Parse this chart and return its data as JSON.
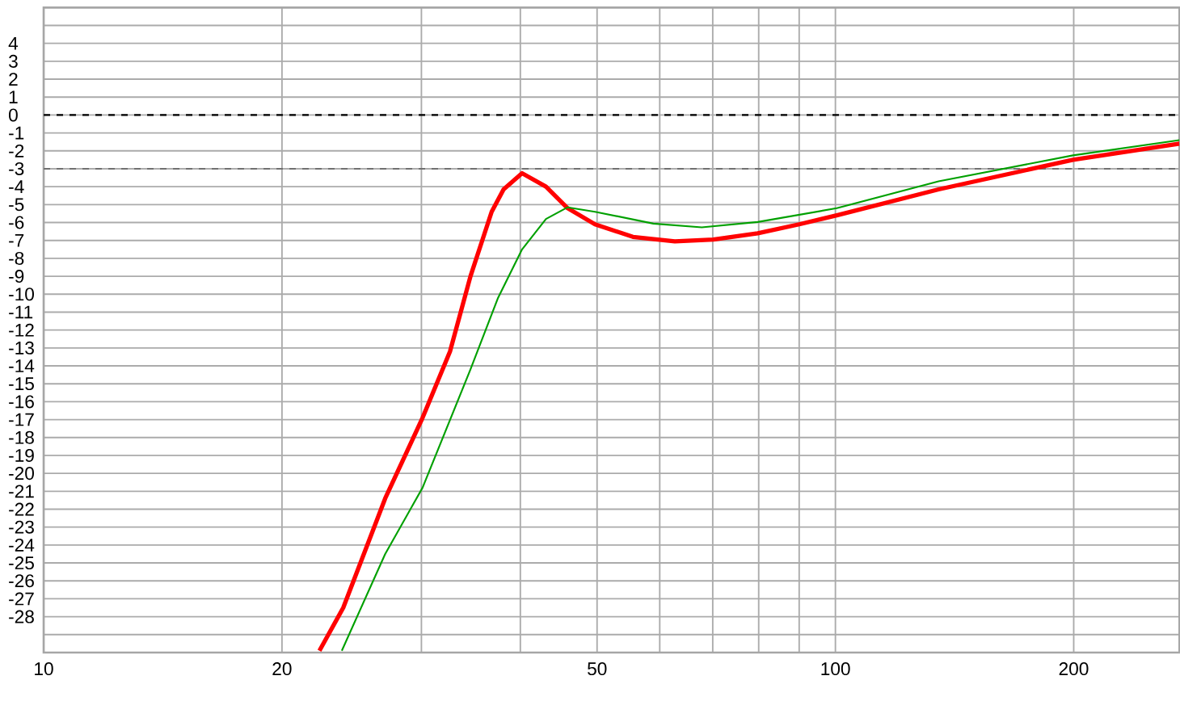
{
  "chart_data": {
    "type": "line",
    "log": "x",
    "xlim": [
      10,
      272
    ],
    "ylim": [
      -30,
      6
    ],
    "xticks": [
      10,
      20,
      {
        "value": 30,
        "label": null
      },
      {
        "value": 40,
        "label": null
      },
      50,
      {
        "value": 60,
        "label": null
      },
      {
        "value": 70,
        "label": null
      },
      {
        "value": 80,
        "label": null
      },
      {
        "value": 90,
        "label": null
      },
      100,
      200
    ],
    "yticks": [
      {
        "value": 5,
        "label": null
      },
      4,
      3,
      2,
      1,
      0,
      -1,
      -2,
      -3,
      -4,
      -5,
      -6,
      -7,
      -8,
      -9,
      -10,
      -11,
      -12,
      -13,
      -14,
      -15,
      -16,
      -17,
      -18,
      -19,
      -20,
      -21,
      -22,
      -23,
      -24,
      -25,
      -26,
      -27,
      -28,
      {
        "value": -29,
        "label": null
      }
    ],
    "grid": true,
    "marker": "none",
    "line_style": "solid",
    "ref_lines": [
      {
        "axis": "y",
        "value": 0,
        "color": "#000000",
        "line_style": "dashed"
      },
      {
        "axis": "y",
        "value": -3,
        "color": "#707070",
        "line_style": "dashed"
      }
    ],
    "series": [
      {
        "color": "#ff0000",
        "x": [
          22.3,
          23.9,
          27.0,
          30.1,
          32.6,
          34.6,
          36.8,
          38.1,
          40.2,
          43.1,
          45.9,
          49.7,
          55.5,
          62.7,
          70.1,
          79.8,
          90,
          100.4,
          135,
          199.6,
          272
        ],
        "values": [
          -29.9,
          -27.5,
          -21.4,
          -16.9,
          -13.2,
          -9.0,
          -5.4,
          -4.15,
          -3.25,
          -4.0,
          -5.2,
          -6.1,
          -6.8,
          -7.05,
          -6.95,
          -6.6,
          -6.1,
          -5.6,
          -4.15,
          -2.5,
          -1.6
        ]
      },
      {
        "color": "#00a000",
        "x": [
          23.8,
          27.0,
          30.1,
          34.6,
          37.5,
          40.2,
          43.1,
          45.9,
          49.7,
          58.9,
          67.8,
          79.8,
          100.4,
          135,
          199.6,
          272
        ],
        "values": [
          -29.9,
          -24.5,
          -20.8,
          -14.2,
          -10.2,
          -7.5,
          -5.8,
          -5.15,
          -5.4,
          -6.06,
          -6.27,
          -5.97,
          -5.2,
          -3.7,
          -2.25,
          -1.4
        ]
      }
    ]
  }
}
